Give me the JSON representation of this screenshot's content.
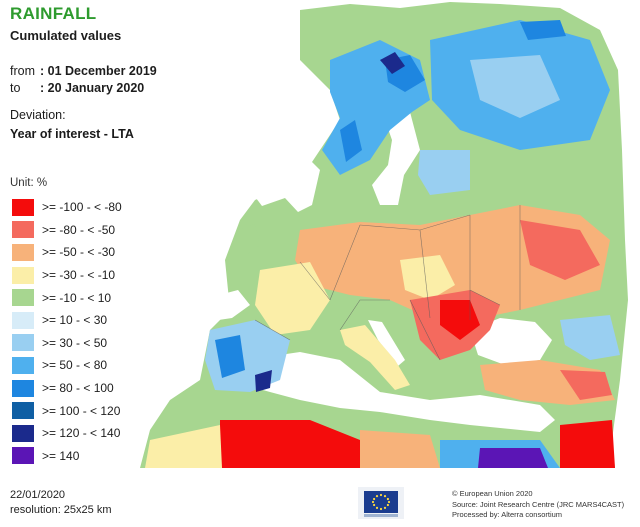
{
  "title": "RAINFALL",
  "subtitle": "Cumulated values",
  "period": {
    "from_label": "from",
    "from_value": ": 01 December 2019",
    "to_label": "to",
    "to_value": ": 20 January 2020"
  },
  "deviation": {
    "label": "Deviation:",
    "value": "Year of interest - LTA"
  },
  "legend": {
    "unit": "Unit:  %",
    "classes": [
      {
        "label": ">= -100 - < -80",
        "color": "#f40c0c"
      },
      {
        "label": ">= -80 - < -50",
        "color": "#f46a5e"
      },
      {
        "label": ">= -50 - < -30",
        "color": "#f7b27a"
      },
      {
        "label": ">= -30 - < -10",
        "color": "#fbeea8"
      },
      {
        "label": ">= -10 - < 10",
        "color": "#a7d690"
      },
      {
        "label": ">= 10 - < 30",
        "color": "#d7ecf8"
      },
      {
        "label": ">= 30 - < 50",
        "color": "#99cff1"
      },
      {
        "label": ">= 50 - < 80",
        "color": "#4fb0ee"
      },
      {
        "label": ">= 80 - < 100",
        "color": "#1e86e0"
      },
      {
        "label": ">= 100 - < 120",
        "color": "#0f5fa4"
      },
      {
        "label": ">= 120 - < 140",
        "color": "#1b2a8c"
      },
      {
        "label": ">= 140",
        "color": "#5b15b5"
      }
    ]
  },
  "footer": {
    "date": "22/01/2020",
    "resolution": "resolution:  25x25 km",
    "credits": [
      "© European Union 2020",
      "Source: Joint Research Centre (JRC MARS4CAST)",
      "Processed by: Alterra consortium"
    ]
  }
}
